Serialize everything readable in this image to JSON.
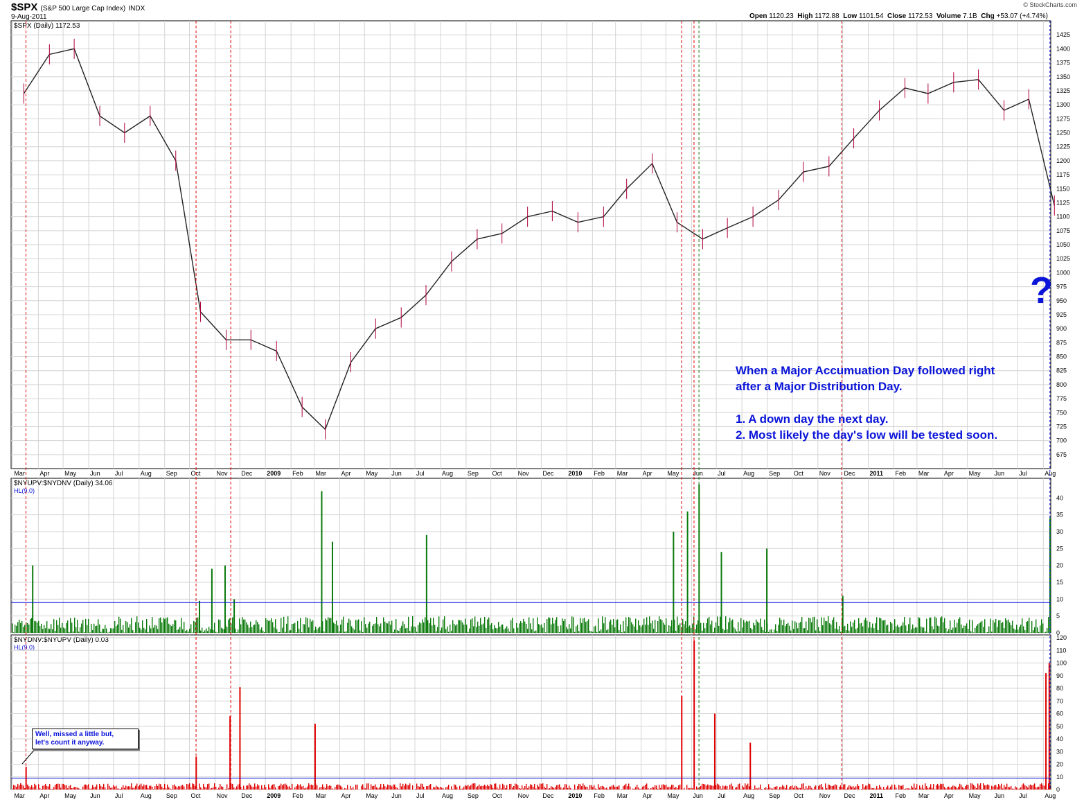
{
  "header": {
    "symbol": "$SPX",
    "description": "(S&P 500 Large Cap Index)",
    "exchange": "INDX",
    "date": "9-Aug-2011",
    "open_label": "Open",
    "open": "1120.23",
    "high_label": "High",
    "high": "1172.88",
    "low_label": "Low",
    "low": "1101.54",
    "close_label": "Close",
    "close": "1172.53",
    "volume_label": "Volume",
    "volume": "7.1B",
    "chg_label": "Chg",
    "chg": "+53.07 (+4.74%)",
    "logo": "© StockCharts.com"
  },
  "annotations": {
    "note_line1": "When a Major Accumuation Day followed right",
    "note_line2": "after a Major Distribution Day.",
    "note_item1": "1. A down day the next day.",
    "note_item2": "2. Most likely the day's low will be tested soon.",
    "question_mark": "?",
    "callout_line1": "Well, missed a little but,",
    "callout_line2": "let's count it anyway."
  },
  "chart_data": [
    {
      "type": "line",
      "name": "price",
      "legend": "$SPX (Daily) 1172.53",
      "ylim": [
        650,
        1450
      ],
      "yticks": [
        675,
        700,
        725,
        750,
        775,
        800,
        825,
        850,
        875,
        900,
        925,
        950,
        975,
        1000,
        1025,
        1050,
        1075,
        1100,
        1125,
        1150,
        1175,
        1200,
        1225,
        1250,
        1275,
        1300,
        1325,
        1350,
        1375,
        1400,
        1425
      ],
      "x_labels": [
        "Mar",
        "Apr",
        "May",
        "Jun",
        "Jul",
        "Aug",
        "Sep",
        "Oct",
        "Nov",
        "Dec",
        "2009",
        "Feb",
        "Mar",
        "Apr",
        "May",
        "Jun",
        "Jul",
        "Aug",
        "Sep",
        "Oct",
        "Nov",
        "Dec",
        "2010",
        "Feb",
        "Mar",
        "Apr",
        "May",
        "Jun",
        "Jul",
        "Aug",
        "Sep",
        "Oct",
        "Nov",
        "Dec",
        "2011",
        "Feb",
        "Mar",
        "Apr",
        "May",
        "Jun",
        "Jul",
        "Aug"
      ],
      "x": [
        "2008-03",
        "2008-04",
        "2008-05",
        "2008-06",
        "2008-07",
        "2008-08",
        "2008-09",
        "2008-10",
        "2008-11",
        "2008-12",
        "2009-01",
        "2009-02",
        "2009-03",
        "2009-04",
        "2009-05",
        "2009-06",
        "2009-07",
        "2009-08",
        "2009-09",
        "2009-10",
        "2009-11",
        "2009-12",
        "2010-01",
        "2010-02",
        "2010-03",
        "2010-04",
        "2010-05",
        "2010-06",
        "2010-07",
        "2010-08",
        "2010-09",
        "2010-10",
        "2010-11",
        "2010-12",
        "2011-01",
        "2011-02",
        "2011-03",
        "2011-04",
        "2011-05",
        "2011-06",
        "2011-07",
        "2011-08"
      ],
      "values": [
        1320,
        1390,
        1400,
        1280,
        1250,
        1280,
        1200,
        930,
        880,
        880,
        860,
        760,
        720,
        840,
        900,
        920,
        960,
        1020,
        1060,
        1070,
        1100,
        1110,
        1090,
        1100,
        1150,
        1195,
        1090,
        1060,
        1080,
        1100,
        1130,
        1180,
        1190,
        1240,
        1290,
        1330,
        1320,
        1340,
        1345,
        1290,
        1310,
        1120
      ]
    },
    {
      "type": "bar",
      "name": "up-down ratio",
      "legend": "$NYUPV:$NYDNV (Daily) 34.06",
      "reference_legend": "HL(9.0)",
      "reference_line": 9,
      "ylim": [
        0,
        45
      ],
      "yticks": [
        0,
        5,
        10,
        15,
        20,
        25,
        30,
        35,
        40
      ],
      "peaks": [
        {
          "date": "2008-03-25",
          "value": 20
        },
        {
          "date": "2008-10-13",
          "value": 9.5
        },
        {
          "date": "2008-10-28",
          "value": 19
        },
        {
          "date": "2008-11-13",
          "value": 20
        },
        {
          "date": "2008-11-24",
          "value": 10
        },
        {
          "date": "2009-03-10",
          "value": 42
        },
        {
          "date": "2009-03-23",
          "value": 27
        },
        {
          "date": "2009-07-15",
          "value": 29
        },
        {
          "date": "2010-05-10",
          "value": 30
        },
        {
          "date": "2010-05-27",
          "value": 36
        },
        {
          "date": "2010-06-10",
          "value": 44
        },
        {
          "date": "2010-07-07",
          "value": 24
        },
        {
          "date": "2010-08-31",
          "value": 25
        },
        {
          "date": "2010-12-01",
          "value": 11
        },
        {
          "date": "2011-08-09",
          "value": 34.06
        }
      ]
    },
    {
      "type": "bar",
      "name": "down-up ratio",
      "legend": "$NYDNV:$NYUPV (Daily) 0.03",
      "reference_legend": "HL(9.0)",
      "reference_line": 9,
      "ylim": [
        0,
        120
      ],
      "yticks": [
        0,
        10,
        20,
        30,
        40,
        50,
        60,
        70,
        80,
        90,
        100,
        110,
        120
      ],
      "peaks": [
        {
          "date": "2008-03-17",
          "value": 18
        },
        {
          "date": "2008-10-09",
          "value": 26
        },
        {
          "date": "2008-11-19",
          "value": 58
        },
        {
          "date": "2008-12-01",
          "value": 81
        },
        {
          "date": "2009-03-02",
          "value": 52
        },
        {
          "date": "2010-05-20",
          "value": 74
        },
        {
          "date": "2010-06-04",
          "value": 118
        },
        {
          "date": "2010-06-29",
          "value": 60
        },
        {
          "date": "2010-08-11",
          "value": 37
        },
        {
          "date": "2011-08-04",
          "value": 92
        },
        {
          "date": "2011-08-08",
          "value": 100
        }
      ]
    }
  ]
}
